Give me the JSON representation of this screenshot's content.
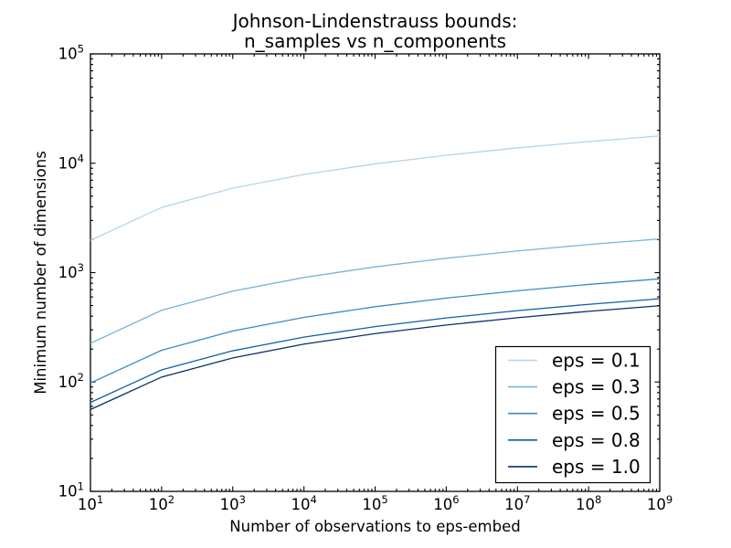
{
  "chart_data": {
    "type": "line",
    "title_lines": [
      "Johnson-Lindenstrauss bounds:",
      "n_samples vs n_components"
    ],
    "xlabel": "Number of observations to eps-embed",
    "ylabel": "Minimum number of dimensions",
    "x_scale": "log",
    "y_scale": "log",
    "xlim": [
      10,
      1000000000
    ],
    "ylim": [
      10,
      100000
    ],
    "x_tick_exponents": [
      1,
      2,
      3,
      4,
      5,
      6,
      7,
      8,
      9
    ],
    "y_tick_exponents": [
      1,
      2,
      3,
      4,
      5
    ],
    "grid": false,
    "legend_position": "lower right",
    "axis_color": "#000000",
    "background_color": "#ffffff",
    "x": [
      10,
      100,
      1000,
      10000,
      100000,
      1000000,
      10000000,
      100000000,
      1000000000
    ],
    "series": [
      {
        "name": "eps = 0.1",
        "color": "#b6d4e9",
        "values": [
          1974,
          3948,
          5921,
          7895,
          9869,
          11842,
          13816,
          15790,
          17763
        ]
      },
      {
        "name": "eps = 0.3",
        "color": "#75b4d8",
        "values": [
          226,
          452,
          677,
          903,
          1129,
          1354,
          1580,
          1805,
          2031
        ]
      },
      {
        "name": "eps = 0.5",
        "color": "#3b8bc3",
        "values": [
          98,
          195,
          293,
          390,
          488,
          585,
          682,
          780,
          877
        ]
      },
      {
        "name": "eps = 0.8",
        "color": "#125ea6",
        "values": [
          65,
          129,
          193,
          257,
          321,
          385,
          449,
          513,
          577
        ]
      },
      {
        "name": "eps = 1.0",
        "color": "#08306b",
        "values": [
          56,
          111,
          166,
          222,
          277,
          332,
          387,
          443,
          498
        ]
      }
    ]
  }
}
